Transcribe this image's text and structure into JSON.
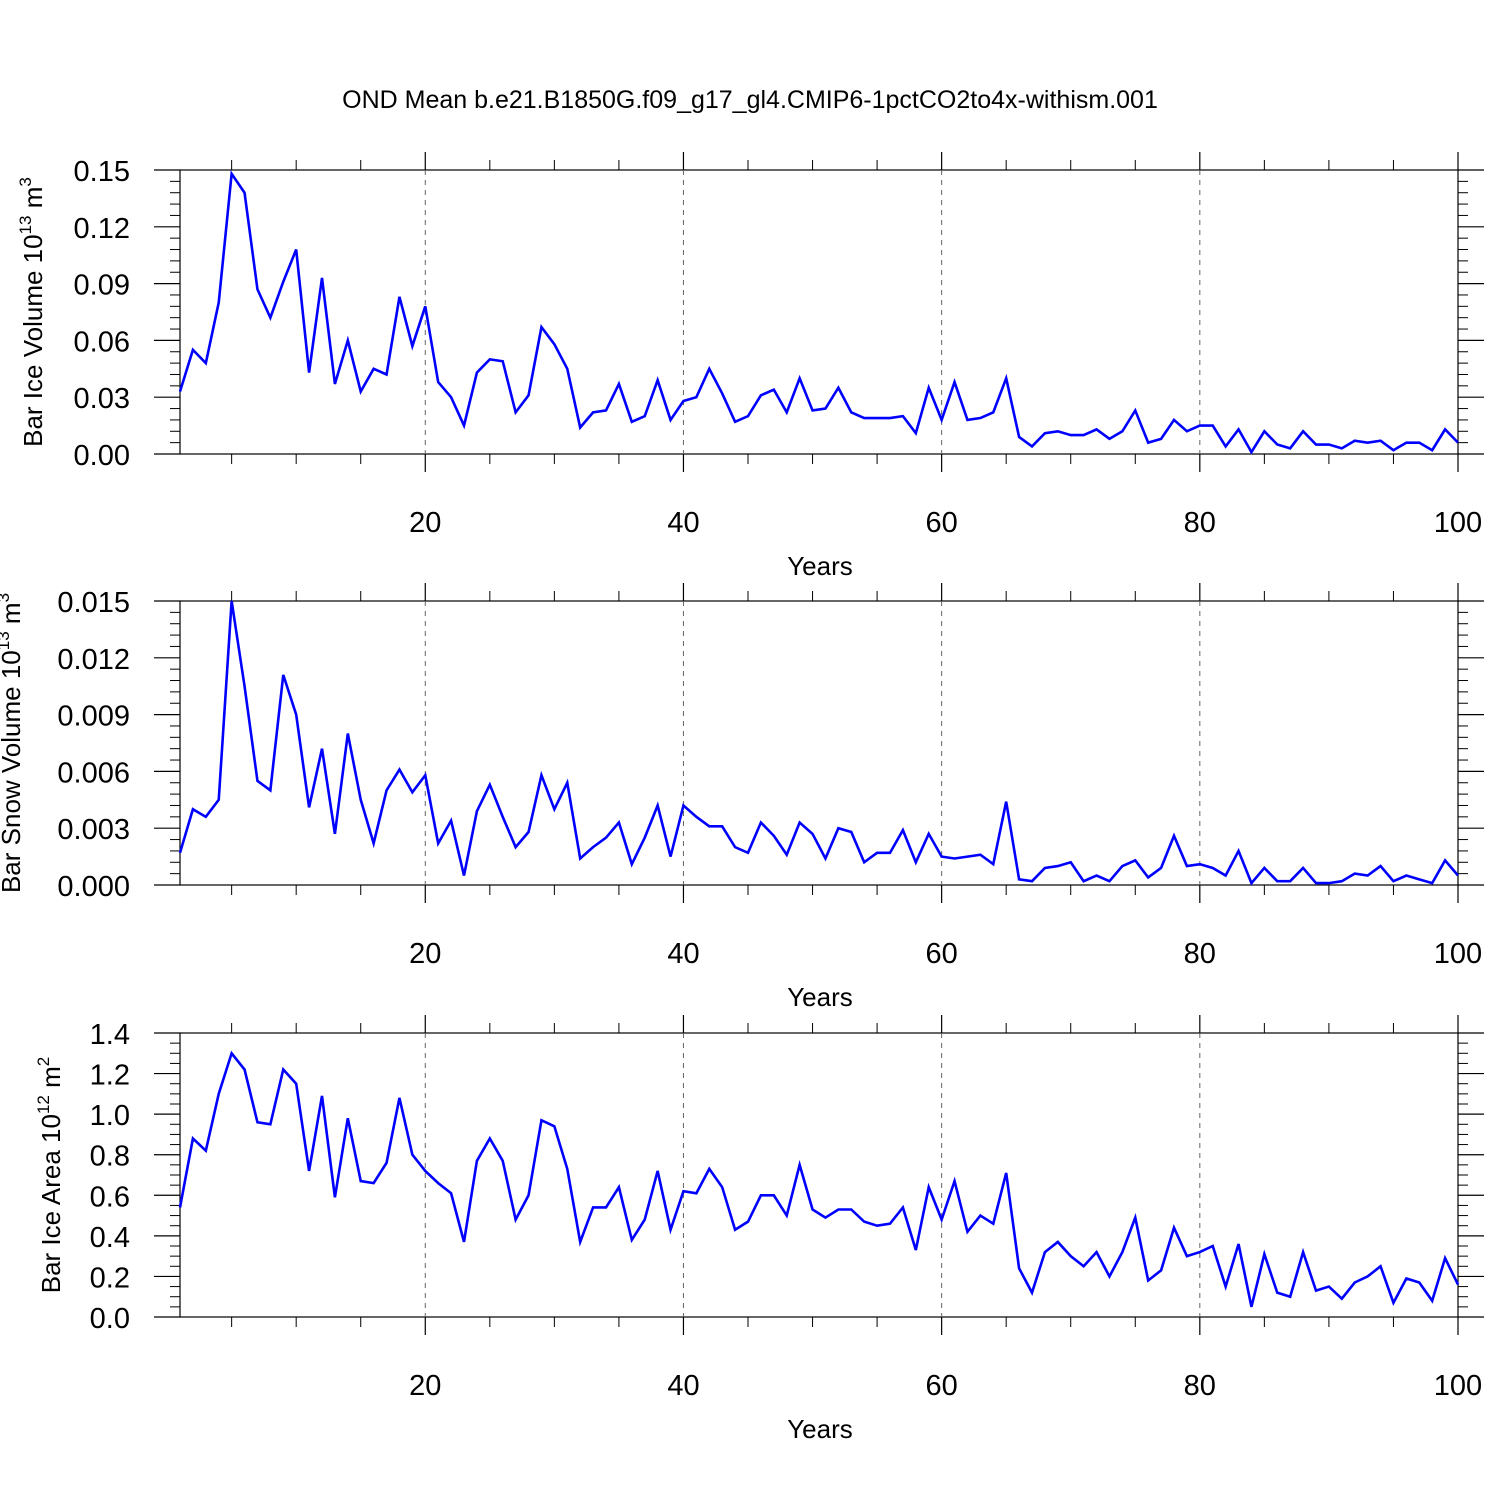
{
  "figure": {
    "title": "OND Mean b.e21.B1850G.f09_g17_gl4.CMIP6-1pctCO2to4x-withism.001"
  },
  "chart_data": [
    {
      "type": "line",
      "id": "ice-volume",
      "xlabel": "Years",
      "ylabel": "Bar Ice Volume 10",
      "ylabel_exp": "13",
      "ylabel_unit": " m",
      "ylabel_unit_exp": "3",
      "xlim": [
        1,
        100
      ],
      "ylim": [
        0,
        0.15
      ],
      "xticks": [
        20,
        40,
        60,
        80,
        100
      ],
      "yticks": [
        0,
        0.03,
        0.06,
        0.09,
        0.12,
        0.15
      ],
      "ytick_labels": [
        "0.00",
        "0.03",
        "0.06",
        "0.09",
        "0.12",
        "0.15"
      ],
      "line_color": "#0000ff",
      "x_start": 1,
      "values": [
        0.033,
        0.055,
        0.048,
        0.08,
        0.148,
        0.138,
        0.087,
        0.072,
        0.091,
        0.108,
        0.043,
        0.093,
        0.037,
        0.06,
        0.033,
        0.045,
        0.042,
        0.083,
        0.057,
        0.078,
        0.038,
        0.03,
        0.015,
        0.043,
        0.05,
        0.049,
        0.022,
        0.031,
        0.067,
        0.058,
        0.045,
        0.014,
        0.022,
        0.023,
        0.037,
        0.017,
        0.02,
        0.039,
        0.018,
        0.028,
        0.03,
        0.045,
        0.032,
        0.017,
        0.02,
        0.031,
        0.034,
        0.022,
        0.04,
        0.023,
        0.024,
        0.035,
        0.022,
        0.019,
        0.019,
        0.019,
        0.02,
        0.011,
        0.035,
        0.018,
        0.038,
        0.018,
        0.019,
        0.022,
        0.04,
        0.009,
        0.004,
        0.011,
        0.012,
        0.01,
        0.01,
        0.013,
        0.008,
        0.012,
        0.023,
        0.006,
        0.008,
        0.018,
        0.012,
        0.015,
        0.015,
        0.004,
        0.013,
        0.001,
        0.012,
        0.005,
        0.003,
        0.012,
        0.005,
        0.005,
        0.003,
        0.007,
        0.006,
        0.007,
        0.002,
        0.006,
        0.006,
        0.002,
        0.013,
        0.006
      ]
    },
    {
      "type": "line",
      "id": "snow-volume",
      "xlabel": "Years",
      "ylabel": "Bar Snow Volume 10",
      "ylabel_exp": "13",
      "ylabel_unit": " m",
      "ylabel_unit_exp": "3",
      "xlim": [
        1,
        100
      ],
      "ylim": [
        0,
        0.015
      ],
      "xticks": [
        20,
        40,
        60,
        80,
        100
      ],
      "yticks": [
        0,
        0.003,
        0.006,
        0.009,
        0.012,
        0.015
      ],
      "ytick_labels": [
        "0.000",
        "0.003",
        "0.006",
        "0.009",
        "0.012",
        "0.015"
      ],
      "line_color": "#0000ff",
      "x_start": 1,
      "values": [
        0.0017,
        0.004,
        0.0036,
        0.0045,
        0.015,
        0.0105,
        0.0055,
        0.005,
        0.0111,
        0.009,
        0.0041,
        0.0072,
        0.0027,
        0.008,
        0.0045,
        0.0022,
        0.005,
        0.0061,
        0.0049,
        0.0058,
        0.0022,
        0.0034,
        0.0005,
        0.0039,
        0.0053,
        0.0036,
        0.002,
        0.0028,
        0.0058,
        0.004,
        0.0054,
        0.0014,
        0.002,
        0.0025,
        0.0033,
        0.0011,
        0.0025,
        0.0042,
        0.0015,
        0.0042,
        0.0036,
        0.0031,
        0.0031,
        0.002,
        0.0017,
        0.0033,
        0.0026,
        0.0016,
        0.0033,
        0.0027,
        0.0014,
        0.003,
        0.0028,
        0.0012,
        0.0017,
        0.0017,
        0.0029,
        0.0012,
        0.0027,
        0.0015,
        0.0014,
        0.0015,
        0.0016,
        0.0011,
        0.0044,
        0.0003,
        0.0002,
        0.0009,
        0.001,
        0.0012,
        0.0002,
        0.0005,
        0.0002,
        0.001,
        0.0013,
        0.0004,
        0.0009,
        0.0026,
        0.001,
        0.0011,
        0.0009,
        0.0005,
        0.0018,
        0.0001,
        0.0009,
        0.0002,
        0.0002,
        0.0009,
        0.0001,
        0.0001,
        0.0002,
        0.0006,
        0.0005,
        0.001,
        0.0002,
        0.0005,
        0.0003,
        0.0001,
        0.0013,
        0.0005
      ]
    },
    {
      "type": "line",
      "id": "ice-area",
      "xlabel": "Years",
      "ylabel": "Bar Ice Area 10",
      "ylabel_exp": "12",
      "ylabel_unit": " m",
      "ylabel_unit_exp": "2",
      "xlim": [
        1,
        100
      ],
      "ylim": [
        0,
        1.4
      ],
      "xticks": [
        20,
        40,
        60,
        80,
        100
      ],
      "yticks": [
        0,
        0.2,
        0.4,
        0.6,
        0.8,
        1.0,
        1.2,
        1.4
      ],
      "ytick_labels": [
        "0.0",
        "0.2",
        "0.4",
        "0.6",
        "0.8",
        "1.0",
        "1.2",
        "1.4"
      ],
      "line_color": "#0000ff",
      "x_start": 1,
      "values": [
        0.54,
        0.88,
        0.82,
        1.1,
        1.3,
        1.22,
        0.96,
        0.95,
        1.22,
        1.15,
        0.72,
        1.09,
        0.59,
        0.98,
        0.67,
        0.66,
        0.76,
        1.08,
        0.8,
        0.72,
        0.66,
        0.61,
        0.37,
        0.77,
        0.88,
        0.77,
        0.48,
        0.6,
        0.97,
        0.94,
        0.73,
        0.37,
        0.54,
        0.54,
        0.64,
        0.38,
        0.48,
        0.72,
        0.43,
        0.62,
        0.61,
        0.73,
        0.64,
        0.43,
        0.47,
        0.6,
        0.6,
        0.5,
        0.75,
        0.53,
        0.49,
        0.53,
        0.53,
        0.47,
        0.45,
        0.46,
        0.54,
        0.33,
        0.64,
        0.48,
        0.67,
        0.42,
        0.5,
        0.46,
        0.71,
        0.24,
        0.12,
        0.32,
        0.37,
        0.3,
        0.25,
        0.32,
        0.2,
        0.32,
        0.49,
        0.18,
        0.23,
        0.44,
        0.3,
        0.32,
        0.35,
        0.15,
        0.36,
        0.05,
        0.31,
        0.12,
        0.1,
        0.32,
        0.13,
        0.15,
        0.09,
        0.17,
        0.2,
        0.25,
        0.07,
        0.19,
        0.17,
        0.08,
        0.29,
        0.16
      ]
    }
  ]
}
